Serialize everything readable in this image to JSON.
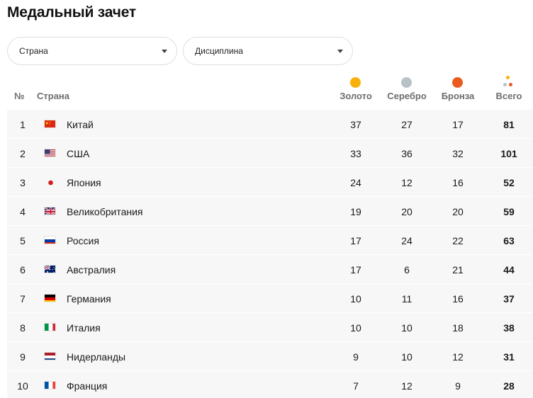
{
  "page": {
    "title": "Медальный зачет"
  },
  "filters": {
    "country_label": "Страна",
    "discipline_label": "Дисциплина"
  },
  "table": {
    "headers": {
      "rank": "№",
      "country": "Страна",
      "gold": "Золото",
      "silver": "Серебро",
      "bronze": "Бронза",
      "total": "Всего"
    },
    "rows": [
      {
        "rank": "1",
        "flag": "china-flag",
        "country": "Китай",
        "gold": "37",
        "silver": "27",
        "bronze": "17",
        "total": "81"
      },
      {
        "rank": "2",
        "flag": "usa-flag",
        "country": "США",
        "gold": "33",
        "silver": "36",
        "bronze": "32",
        "total": "101"
      },
      {
        "rank": "3",
        "flag": "japan-flag",
        "country": "Япония",
        "gold": "24",
        "silver": "12",
        "bronze": "16",
        "total": "52"
      },
      {
        "rank": "4",
        "flag": "uk-flag",
        "country": "Великобритания",
        "gold": "19",
        "silver": "20",
        "bronze": "20",
        "total": "59"
      },
      {
        "rank": "5",
        "flag": "russia-flag",
        "country": "Россия",
        "gold": "17",
        "silver": "24",
        "bronze": "22",
        "total": "63"
      },
      {
        "rank": "6",
        "flag": "australia-flag",
        "country": "Австралия",
        "gold": "17",
        "silver": "6",
        "bronze": "21",
        "total": "44"
      },
      {
        "rank": "7",
        "flag": "germany-flag",
        "country": "Германия",
        "gold": "10",
        "silver": "11",
        "bronze": "16",
        "total": "37"
      },
      {
        "rank": "8",
        "flag": "italy-flag",
        "country": "Италия",
        "gold": "10",
        "silver": "10",
        "bronze": "18",
        "total": "38"
      },
      {
        "rank": "9",
        "flag": "netherlands-flag",
        "country": "Нидерланды",
        "gold": "9",
        "silver": "10",
        "bronze": "12",
        "total": "31"
      },
      {
        "rank": "10",
        "flag": "france-flag",
        "country": "Франция",
        "gold": "7",
        "silver": "12",
        "bronze": "9",
        "total": "28"
      }
    ]
  },
  "colors": {
    "gold": "#f9b10a",
    "silver": "#b8c1c6",
    "bronze": "#ea5a1e",
    "row_bg": "#f7f7f7"
  }
}
